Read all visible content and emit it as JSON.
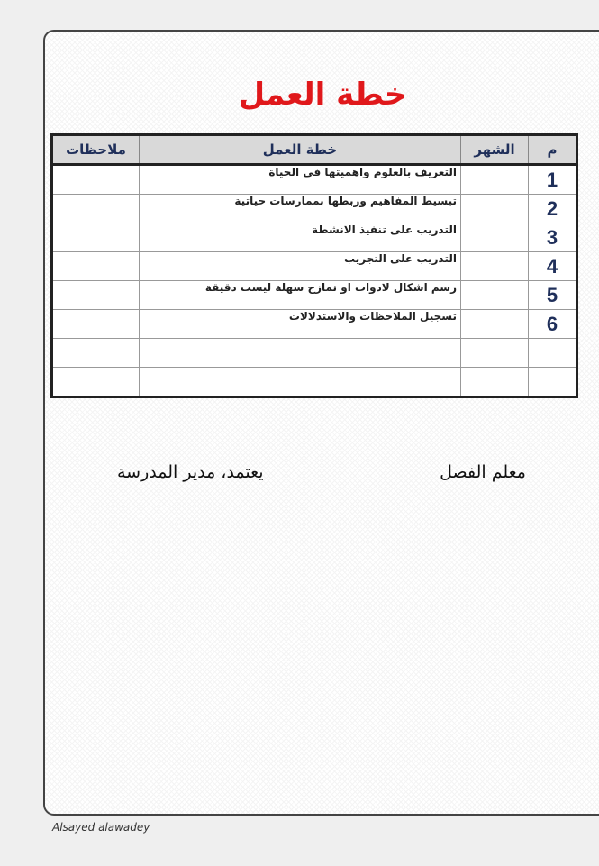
{
  "title": "خطة العمل",
  "table": {
    "headers": [
      "م",
      "الشهر",
      "خطة العمل",
      "ملاحظات"
    ],
    "rows": [
      {
        "num": "1",
        "month": "",
        "plan": "التعريف بالعلوم واهميتها فى الحياة",
        "notes": ""
      },
      {
        "num": "2",
        "month": "",
        "plan": "تبسيط المفاهيم وربطها بممارسات حياتية",
        "notes": ""
      },
      {
        "num": "3",
        "month": "",
        "plan": "التدريب على تنفيذ الانشطة",
        "notes": ""
      },
      {
        "num": "4",
        "month": "",
        "plan": "التدريب على التجريب",
        "notes": ""
      },
      {
        "num": "5",
        "month": "",
        "plan": "رسم اشكال لادوات او نمازج سهلة ليست دقيقة",
        "notes": ""
      },
      {
        "num": "6",
        "month": "",
        "plan": "تسجيل الملاحظات والاستدلالات",
        "notes": ""
      },
      {
        "num": "",
        "month": "",
        "plan": "",
        "notes": ""
      },
      {
        "num": "",
        "month": "",
        "plan": "",
        "notes": ""
      }
    ]
  },
  "signatures": {
    "teacher": "معلم الفصل",
    "principal": "يعتمد، مدير المدرسة"
  },
  "footer": "Alsayed alawadey",
  "colors": {
    "title": "#e0181b",
    "header_text": "#1f2f5a"
  }
}
